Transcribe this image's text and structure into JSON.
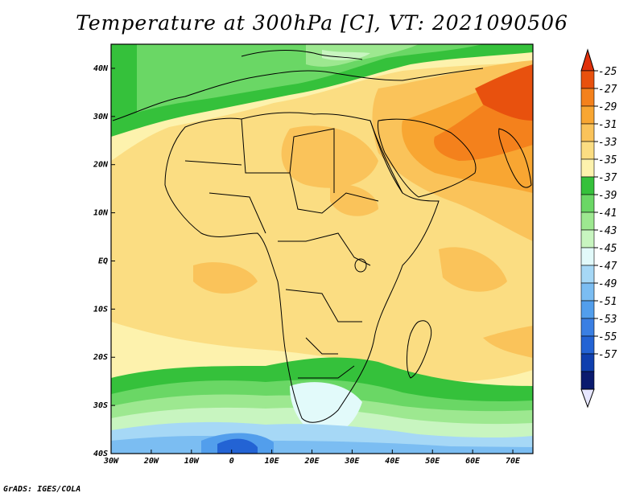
{
  "title": "Temperature at 300hPa [C], VT: 2021090506",
  "credit": "GrADS: IGES/COLA",
  "map": {
    "lon_range": [
      -30,
      75
    ],
    "lat_range": [
      -40,
      45
    ],
    "lon_ticks": [
      {
        "value": -30,
        "label": "30W"
      },
      {
        "value": -20,
        "label": "20W"
      },
      {
        "value": -10,
        "label": "10W"
      },
      {
        "value": 0,
        "label": "0"
      },
      {
        "value": 10,
        "label": "10E"
      },
      {
        "value": 20,
        "label": "20E"
      },
      {
        "value": 30,
        "label": "30E"
      },
      {
        "value": 40,
        "label": "40E"
      },
      {
        "value": 50,
        "label": "50E"
      },
      {
        "value": 60,
        "label": "60E"
      },
      {
        "value": 70,
        "label": "70E"
      }
    ],
    "lat_ticks": [
      {
        "value": 40,
        "label": "40N"
      },
      {
        "value": 30,
        "label": "30N"
      },
      {
        "value": 20,
        "label": "20N"
      },
      {
        "value": 10,
        "label": "10N"
      },
      {
        "value": 0,
        "label": "EQ"
      },
      {
        "value": -10,
        "label": "10S"
      },
      {
        "value": -20,
        "label": "20S"
      },
      {
        "value": -30,
        "label": "30S"
      },
      {
        "value": -40,
        "label": "40S"
      }
    ]
  },
  "colorbar": {
    "levels": [
      "-25",
      "-27",
      "-29",
      "-31",
      "-33",
      "-35",
      "-37",
      "-39",
      "-41",
      "-43",
      "-45",
      "-47",
      "-49",
      "-51",
      "-53",
      "-55",
      "-57"
    ],
    "colors": [
      "#e8510e",
      "#f4811c",
      "#f8a632",
      "#fac35a",
      "#fbdd82",
      "#fdf2ad",
      "#35c13b",
      "#6ad765",
      "#9de890",
      "#c8f5c0",
      "#e2fafa",
      "#a6d8f6",
      "#7bbdf2",
      "#529eec",
      "#3a7fe3",
      "#2363d4",
      "#0f3fae",
      "#0a1a6e"
    ],
    "top_arrow_color": "#e0300a",
    "bottom_arrow_color": "#e6e6ff"
  }
}
